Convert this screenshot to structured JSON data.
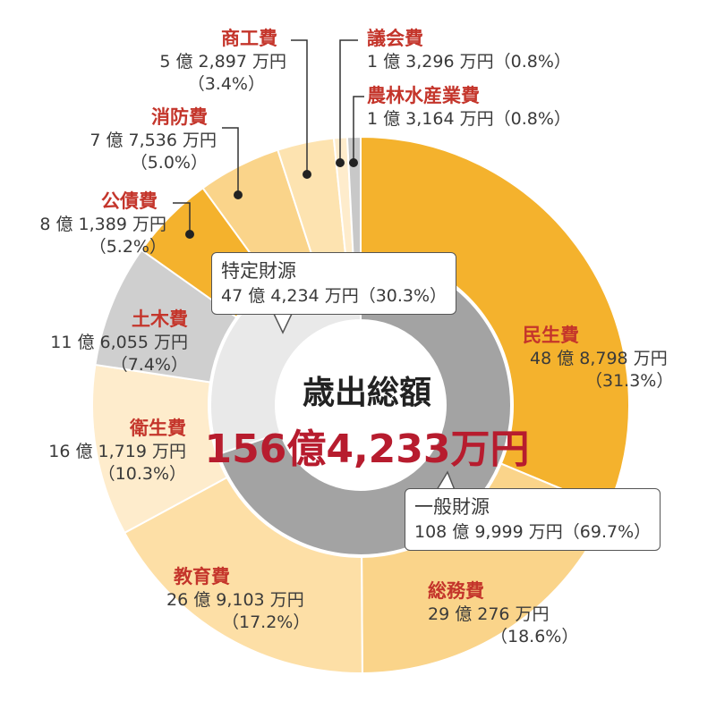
{
  "chart_data": {
    "type": "pie",
    "variant": "double-donut",
    "center_title": "歳出総額",
    "center_total": "156億4,233万円",
    "outer_ring": [
      {
        "name": "民生費",
        "value_text": "48 億 8,798 万円",
        "percent_text": "（31.3%）",
        "percent": 31.3,
        "color": "#f4b22d"
      },
      {
        "name": "総務費",
        "value_text": "29 億 276 万円",
        "percent_text": "（18.6%）",
        "percent": 18.6,
        "color": "#fad48a"
      },
      {
        "name": "教育費",
        "value_text": "26 億 9,103 万円",
        "percent_text": "（17.2%）",
        "percent": 17.2,
        "color": "#fddfa6"
      },
      {
        "name": "衛生費",
        "value_text": "16 億 1,719 万円",
        "percent_text": "（10.3%）",
        "percent": 10.3,
        "color": "#feeccc"
      },
      {
        "name": "土木費",
        "value_text": "11 億 6,055 万円",
        "percent_text": "（7.4%）",
        "percent": 7.4,
        "color": "#cfcfcf"
      },
      {
        "name": "公債費",
        "value_text": "8 億 1,389 万円",
        "percent_text": "（5.2%）",
        "percent": 5.2,
        "color": "#f4b22d"
      },
      {
        "name": "消防費",
        "value_text": "7 億 7,536 万円",
        "percent_text": "（5.0%）",
        "percent": 5.0,
        "color": "#fad48a"
      },
      {
        "name": "商工費",
        "value_text": "5 億 2,897 万円",
        "percent_text": "（3.4%）",
        "percent": 3.4,
        "color": "#fde3b0"
      },
      {
        "name": "議会費",
        "value_text": "1 億 3,296 万円",
        "percent_text": "（0.8%）",
        "percent": 0.8,
        "color": "#feeccc"
      },
      {
        "name": "農林水産業費",
        "value_text": "1 億 3,164 万円",
        "percent_text": "（0.8%）",
        "percent": 0.8,
        "color": "#c8c8c8"
      }
    ],
    "inner_ring": [
      {
        "name": "一般財源",
        "value_text": "108 億 9,999 万円（69.7%）",
        "percent": 69.7,
        "color": "#a3a3a3"
      },
      {
        "name": "特定財源",
        "value_text": "47 億 4,234 万円（30.3%）",
        "percent": 30.3,
        "color": "#e9e9e9"
      }
    ]
  }
}
